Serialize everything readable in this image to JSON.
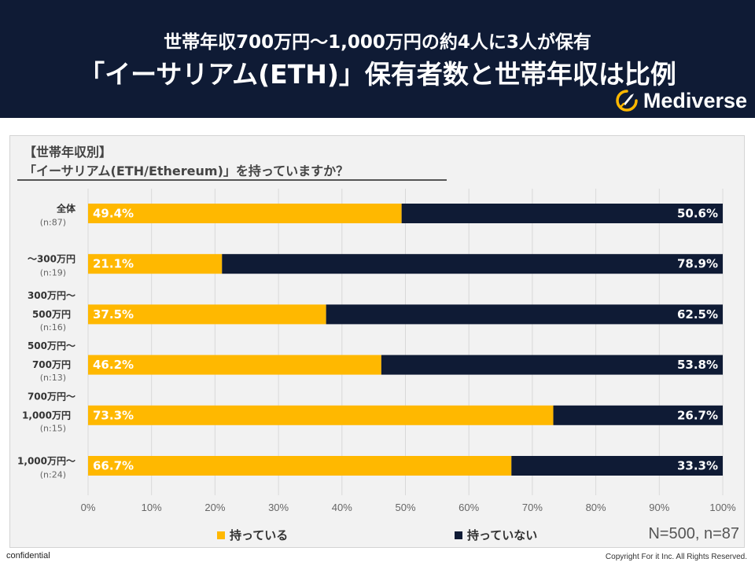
{
  "header": {
    "subtitle": "世帯年収700万円〜1,000万円の約4人に3人が保有",
    "title": "「イーサリアム(ETH)」保有者数と世帯年収は比例",
    "logo_text": "Mediverse"
  },
  "question": {
    "line1": "【世帯年収別】",
    "line2": "「イーサリアム(ETH/Ethereum)」を持っていますか？"
  },
  "chart_data": {
    "type": "bar",
    "orientation": "horizontal",
    "stacked": true,
    "percent_stacked": true,
    "categories": [
      {
        "label": [
          "全体"
        ],
        "n": "(n:87)"
      },
      {
        "label": [
          "〜300万円"
        ],
        "n": "(n:19)"
      },
      {
        "label": [
          "300万円〜",
          "500万円"
        ],
        "n": "(n:16)"
      },
      {
        "label": [
          "500万円〜",
          "700万円"
        ],
        "n": "(n:13)"
      },
      {
        "label": [
          "700万円〜",
          "1,000万円"
        ],
        "n": "(n:15)"
      },
      {
        "label": [
          "1,000万円〜"
        ],
        "n": "(n:24)"
      }
    ],
    "series": [
      {
        "name": "持っている",
        "color": "#ffb800",
        "values": [
          49.4,
          21.1,
          37.5,
          46.2,
          73.3,
          66.7
        ]
      },
      {
        "name": "持っていない",
        "color": "#0f1b35",
        "values": [
          50.6,
          78.9,
          62.5,
          53.8,
          26.7,
          33.3
        ]
      }
    ],
    "xlim": [
      0,
      100
    ],
    "xticks": [
      "0%",
      "10%",
      "20%",
      "30%",
      "40%",
      "50%",
      "60%",
      "70%",
      "80%",
      "90%",
      "100%"
    ],
    "grid": true,
    "legend": "bottom"
  },
  "stats": {
    "sample": "N=500, n=87"
  },
  "footer": {
    "left": "confidential",
    "right": "Copyright For it Inc. All Rights Reserved."
  }
}
